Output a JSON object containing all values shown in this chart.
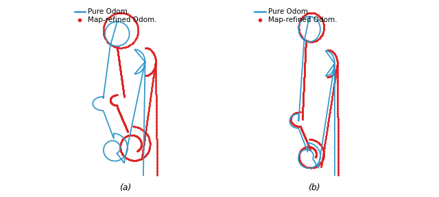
{
  "title_a": "(a)",
  "title_b": "(b)",
  "legend_line_label": "Pure Odom.",
  "legend_dot_label": "Map-refined Odom.",
  "line_color": "#3399cc",
  "dot_color": "#dd2222",
  "background_color": "#ffffff",
  "line_width": 1.3,
  "dot_size": 2.0,
  "legend_fontsize": 7.5,
  "label_fontsize": 9,
  "figsize": [
    6.4,
    2.87
  ],
  "dpi": 100
}
